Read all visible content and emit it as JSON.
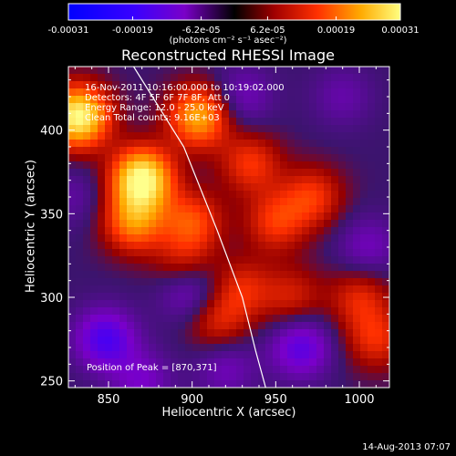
{
  "chart_data": {
    "type": "heatmap",
    "title": "Reconstructed RHESSI Image",
    "xlabel": "Heliocentric X (arcsec)",
    "ylabel": "Heliocentric Y (arcsec)",
    "xlim": [
      826,
      1018
    ],
    "ylim": [
      246,
      438
    ],
    "x_ticks": [
      "850",
      "900",
      "950",
      "1000"
    ],
    "y_ticks": [
      "250",
      "300",
      "350",
      "400"
    ],
    "colorbar": {
      "ticks": [
        "-0.00031",
        "-0.00019",
        "-6.2e-05",
        "6.2e-05",
        "0.00019",
        "0.00031"
      ],
      "units": "(photons cm⁻² s⁻¹ asec⁻²)",
      "range": [
        -0.00031,
        0.00031
      ]
    },
    "annotations": [
      "16-Nov-2011 10:16:00.000 to 10:19:02.000",
      "Detectors: 4F 5F 6F 7F 8F, Att 0",
      "Energy Range: 12.0 - 25.0 keV",
      "Clean    Total counts: 9.16E+03"
    ],
    "peak_label": "Position of Peak = [870,371]",
    "peak": [
      870,
      371
    ],
    "sources": [
      {
        "x": 832,
        "y": 408,
        "value": 0.00031
      },
      {
        "x": 870,
        "y": 371,
        "value": 0.00031
      },
      {
        "x": 904,
        "y": 408,
        "value": 0.00022
      },
      {
        "x": 865,
        "y": 345,
        "value": 0.00018
      },
      {
        "x": 900,
        "y": 345,
        "value": 0.00014
      },
      {
        "x": 935,
        "y": 380,
        "value": 0.00012
      },
      {
        "x": 950,
        "y": 345,
        "value": 0.00012
      },
      {
        "x": 972,
        "y": 360,
        "value": 0.00012
      },
      {
        "x": 895,
        "y": 318,
        "value": 0.0001
      },
      {
        "x": 930,
        "y": 305,
        "value": 0.0001
      },
      {
        "x": 915,
        "y": 285,
        "value": 0.0001
      },
      {
        "x": 1000,
        "y": 300,
        "value": 0.0001
      },
      {
        "x": 1010,
        "y": 275,
        "value": 0.00011
      },
      {
        "x": 960,
        "y": 300,
        "value": 9e-05
      },
      {
        "x": 848,
        "y": 275,
        "value": -0.00016
      },
      {
        "x": 830,
        "y": 360,
        "value": -5e-05
      },
      {
        "x": 898,
        "y": 305,
        "value": -0.00012
      },
      {
        "x": 965,
        "y": 270,
        "value": -0.00014
      },
      {
        "x": 930,
        "y": 420,
        "value": -8e-05
      },
      {
        "x": 990,
        "y": 420,
        "value": -6e-05
      },
      {
        "x": 1005,
        "y": 330,
        "value": -8e-05
      },
      {
        "x": 870,
        "y": 250,
        "value": -9e-05
      },
      {
        "x": 920,
        "y": 258,
        "value": -8e-05
      }
    ],
    "limb": [
      [
        865,
        438
      ],
      [
        895,
        390
      ],
      [
        915,
        340
      ],
      [
        930,
        300
      ],
      [
        938,
        268
      ],
      [
        944,
        246
      ]
    ]
  },
  "footer": "14-Aug-2013 07:07"
}
